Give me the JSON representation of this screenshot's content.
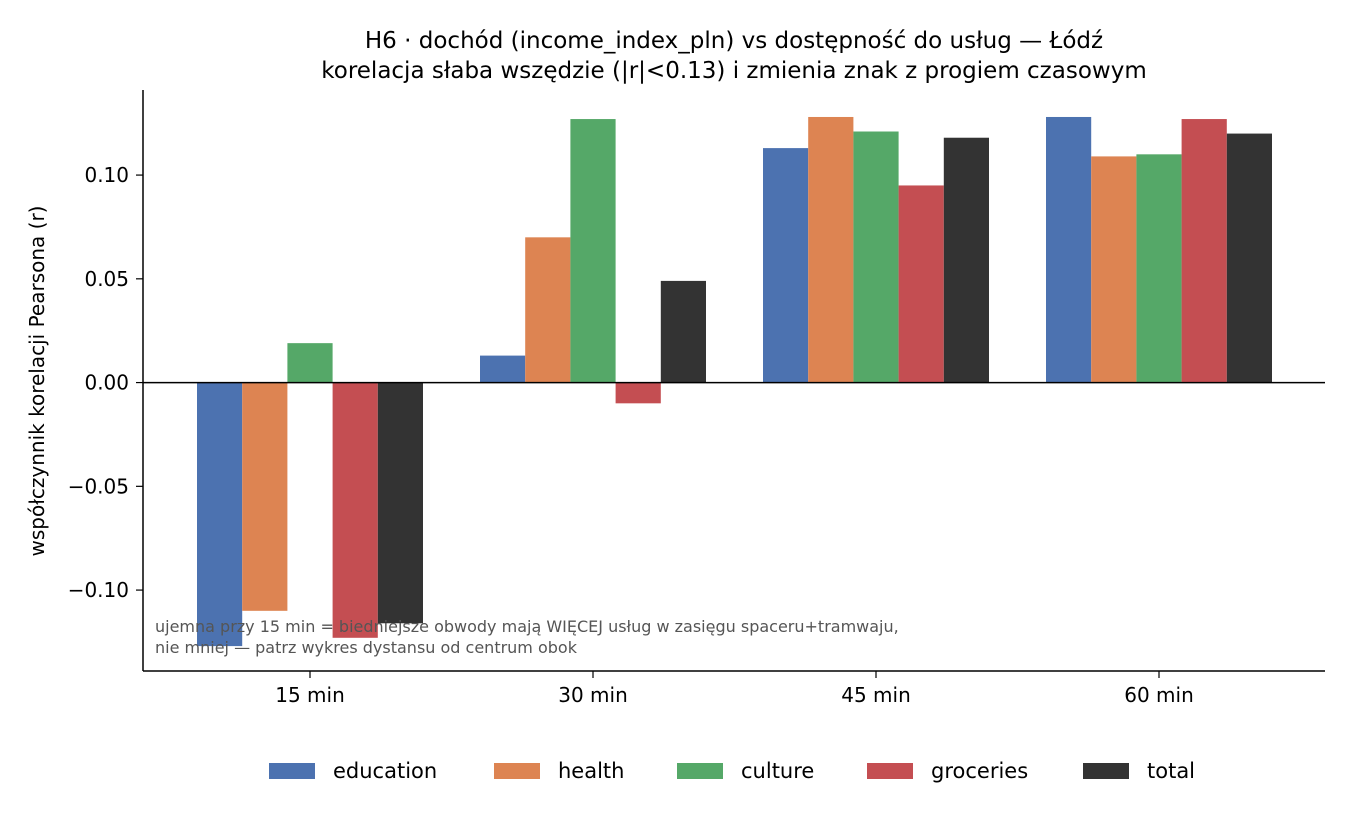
{
  "chart_data": {
    "type": "bar",
    "title": "H6 · dochód (income_index_pln) vs dostępność do usług — Łódź",
    "subtitle": "korelacja słaba wszędzie (|r|<0.13) i zmienia znak z progiem czasowym",
    "xlabel": "",
    "ylabel": "współczynnik korelacji Pearsona (r)",
    "categories": [
      "15 min",
      "30 min",
      "45 min",
      "60 min"
    ],
    "series": [
      {
        "name": "education",
        "color": "#4c72b0",
        "values": [
          -0.127,
          0.013,
          0.113,
          0.128
        ]
      },
      {
        "name": "health",
        "color": "#dd8452",
        "values": [
          -0.11,
          0.07,
          0.128,
          0.109
        ]
      },
      {
        "name": "culture",
        "color": "#55a868",
        "values": [
          0.019,
          0.127,
          0.121,
          0.11
        ]
      },
      {
        "name": "groceries",
        "color": "#c44e52",
        "values": [
          -0.123,
          -0.01,
          0.095,
          0.127
        ]
      },
      {
        "name": "total",
        "color": "#333333",
        "values": [
          -0.116,
          0.049,
          0.118,
          0.12
        ]
      }
    ],
    "yticks": [
      -0.1,
      -0.05,
      0.0,
      0.05,
      0.1
    ],
    "ytick_labels": [
      "−0.10",
      "−0.05",
      "0.00",
      "0.05",
      "0.10"
    ],
    "ylim": [
      -0.139,
      0.141
    ],
    "annotation": [
      "ujemna przy 15 min = biedniejsze obwody mają WIĘCEJ usług w zasięgu spaceru+tramwaju,",
      "nie mniej — patrz wykres dystansu od centrum obok"
    ],
    "legend_placement": "bottom-center",
    "grid": false
  }
}
